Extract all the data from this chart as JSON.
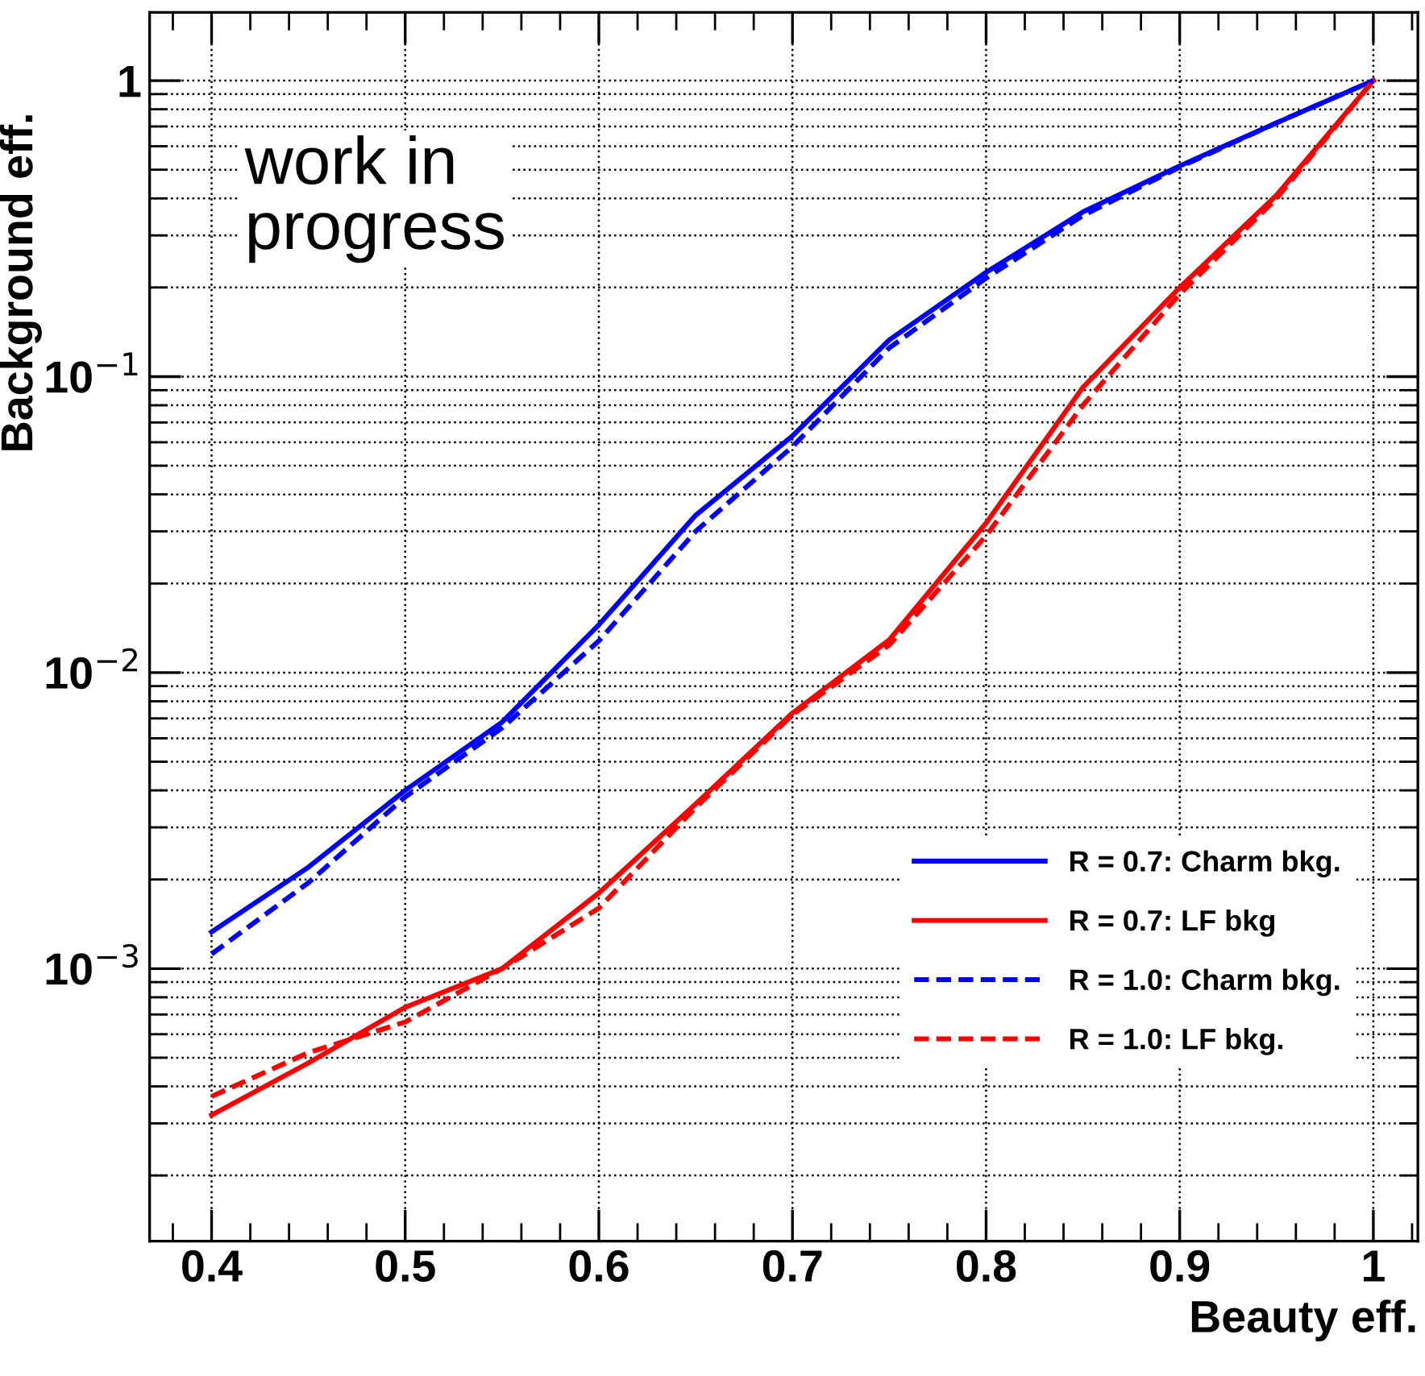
{
  "chart_data": {
    "type": "line",
    "xlabel": "Beauty eff.",
    "ylabel": "Background eff.",
    "annotations": [
      "work in\nprogress"
    ],
    "x": [
      0.4,
      0.45,
      0.5,
      0.55,
      0.6,
      0.65,
      0.7,
      0.75,
      0.8,
      0.85,
      0.9,
      0.95,
      1.0
    ],
    "series": [
      {
        "name": "R = 0.7: Charm bkg.",
        "color": "#0000ff",
        "line_style": "solid",
        "values": [
          0.00133,
          0.0022,
          0.004,
          0.0068,
          0.0145,
          0.034,
          0.063,
          0.133,
          0.225,
          0.36,
          0.515,
          0.72,
          1.0
        ]
      },
      {
        "name": "R = 0.7: LF bkg",
        "color": "#ff0000",
        "line_style": "solid",
        "values": [
          0.00032,
          0.00048,
          0.00074,
          0.001,
          0.0018,
          0.0036,
          0.0073,
          0.0129,
          0.032,
          0.092,
          0.2,
          0.41,
          1.0
        ]
      },
      {
        "name": "R = 1.0: Charm bkg.",
        "color": "#0000ff",
        "line_style": "dashed",
        "values": [
          0.00112,
          0.00195,
          0.0038,
          0.0065,
          0.0128,
          0.03,
          0.058,
          0.125,
          0.215,
          0.35,
          0.51,
          0.72,
          1.0
        ]
      },
      {
        "name": "R = 1.0: LF bkg.",
        "color": "#ff0000",
        "line_style": "dashed",
        "values": [
          0.00037,
          0.00052,
          0.00066,
          0.001,
          0.0016,
          0.0035,
          0.0072,
          0.0124,
          0.029,
          0.08,
          0.19,
          0.4,
          1.0
        ]
      }
    ],
    "log": "y",
    "xlim": [
      0.368,
      1.023
    ],
    "ylim": [
      0.00012,
      1.7
    ],
    "xticks": [
      0.4,
      0.5,
      0.6,
      0.7,
      0.8,
      0.9,
      1
    ],
    "yticks": [
      {
        "value": 0.001,
        "label": "10$^{−3}$"
      },
      {
        "value": 0.01,
        "label": "10$^{−2}$"
      },
      {
        "value": 0.1,
        "label": "10$^{−1}$"
      },
      1
    ],
    "grid": true,
    "legend": "bottom right"
  }
}
